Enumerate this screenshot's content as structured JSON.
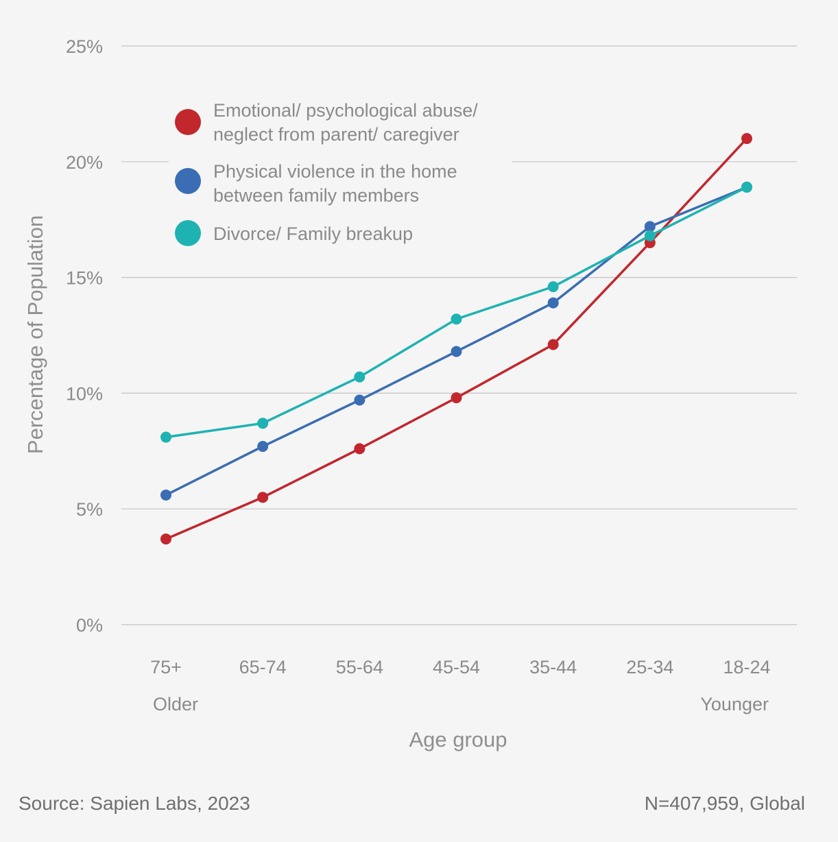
{
  "chart_data": {
    "type": "line",
    "title": "",
    "xlabel": "Age group",
    "ylabel": "Percentage of Population",
    "categories": [
      "75+",
      "65-74",
      "55-64",
      "45-54",
      "35-44",
      "25-34",
      "18-24"
    ],
    "x_sub_labels": {
      "first": "Older",
      "last": "Younger"
    },
    "yticks": [
      "0%",
      "5%",
      "10%",
      "15%",
      "20%",
      "25%"
    ],
    "ylim": [
      0,
      25
    ],
    "grid": true,
    "legend_position": "top-left",
    "series": [
      {
        "name": "Emotional/ psychological abuse/ neglect from parent/ caregiver",
        "legend_lines": [
          "Emotional/ psychological abuse/",
          "neglect from parent/ caregiver"
        ],
        "color": "#c1272d",
        "values": [
          3.7,
          5.5,
          7.6,
          9.8,
          12.1,
          16.5,
          21.0
        ]
      },
      {
        "name": "Physical violence in the home between family members",
        "legend_lines": [
          "Physical violence in the home",
          "between family members"
        ],
        "color": "#3a6db3",
        "values": [
          5.6,
          7.7,
          9.7,
          11.8,
          13.9,
          17.2,
          18.9
        ]
      },
      {
        "name": "Divorce/ Family breakup",
        "legend_lines": [
          "Divorce/ Family breakup"
        ],
        "color": "#1fb2b2",
        "values": [
          8.1,
          8.7,
          10.7,
          13.2,
          14.6,
          16.8,
          18.9
        ]
      }
    ]
  },
  "footer": {
    "source": "Source: Sapien Labs, 2023",
    "sample": "N=407,959, Global"
  }
}
